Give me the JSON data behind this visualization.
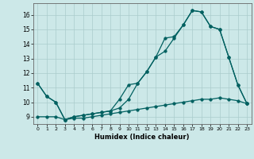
{
  "xlabel": "Humidex (Indice chaleur)",
  "xlim": [
    -0.5,
    23.5
  ],
  "ylim": [
    8.5,
    16.8
  ],
  "yticks": [
    9,
    10,
    11,
    12,
    13,
    14,
    15,
    16
  ],
  "xticks": [
    0,
    1,
    2,
    3,
    4,
    5,
    6,
    7,
    8,
    9,
    10,
    11,
    12,
    13,
    14,
    15,
    16,
    17,
    18,
    19,
    20,
    21,
    22,
    23
  ],
  "background_color": "#cce8e8",
  "grid_color": "#aacccc",
  "line_color": "#006060",
  "line1_x": [
    0,
    1,
    2,
    3,
    4,
    5,
    6,
    7,
    8,
    9,
    10,
    11,
    12,
    13,
    14,
    15,
    16,
    17,
    18,
    19,
    20,
    21,
    22,
    23
  ],
  "line1_y": [
    11.3,
    10.4,
    10.0,
    8.8,
    9.0,
    9.1,
    9.2,
    9.3,
    9.4,
    9.6,
    10.2,
    11.3,
    12.1,
    13.1,
    13.5,
    14.4,
    15.3,
    16.3,
    16.2,
    15.2,
    15.0,
    13.1,
    11.2,
    9.9
  ],
  "line2_x": [
    0,
    1,
    2,
    3,
    4,
    5,
    6,
    7,
    8,
    9,
    10,
    11,
    12,
    13,
    14,
    15,
    16,
    17,
    18,
    19,
    20,
    21,
    22,
    23
  ],
  "line2_y": [
    11.3,
    10.4,
    10.0,
    8.8,
    9.0,
    9.1,
    9.2,
    9.3,
    9.4,
    10.2,
    11.2,
    11.3,
    12.1,
    13.1,
    14.4,
    14.5,
    15.3,
    16.3,
    16.2,
    15.2,
    15.0,
    13.1,
    11.2,
    9.9
  ],
  "line3_x": [
    0,
    1,
    2,
    3,
    4,
    5,
    6,
    7,
    8,
    9,
    10,
    11,
    12,
    13,
    14,
    15,
    16,
    17,
    18,
    19,
    20,
    21,
    22,
    23
  ],
  "line3_y": [
    9.0,
    9.0,
    9.0,
    8.8,
    8.9,
    8.9,
    9.0,
    9.1,
    9.2,
    9.3,
    9.4,
    9.5,
    9.6,
    9.7,
    9.8,
    9.9,
    10.0,
    10.1,
    10.2,
    10.2,
    10.3,
    10.2,
    10.1,
    9.9
  ]
}
